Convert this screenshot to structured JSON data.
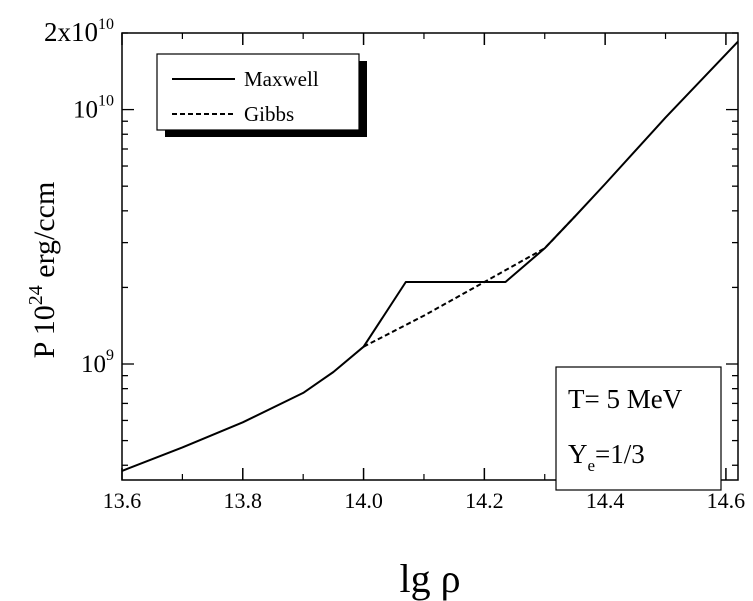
{
  "chart_data": {
    "type": "line",
    "xlabel": "lg ρ",
    "ylabel": {
      "prefix": "P  10",
      "exponent": "24",
      "suffix": " erg/ccm"
    },
    "xlim": [
      13.6,
      14.62
    ],
    "ylim": [
      350000000,
      20000000000
    ],
    "yscale": "log",
    "x_ticks": [
      {
        "value": 13.6,
        "label": "13.6"
      },
      {
        "value": 13.8,
        "label": "13.8"
      },
      {
        "value": 14.0,
        "label": "14.0"
      },
      {
        "value": 14.2,
        "label": "14.2"
      },
      {
        "value": 14.4,
        "label": "14.4"
      },
      {
        "value": 14.6,
        "label": "14.6"
      }
    ],
    "y_tick_labels": [
      {
        "value": 1000000000,
        "base": "10",
        "exp": "9"
      },
      {
        "value": 10000000000,
        "base": "10",
        "exp": "10"
      },
      {
        "value": 20000000000,
        "base": "2x10",
        "exp": "10"
      }
    ],
    "grid": false,
    "legend": {
      "position": "top-left",
      "entries": [
        {
          "label": "Maxwell",
          "style": "solid"
        },
        {
          "label": "Gibbs",
          "style": "dashed"
        }
      ]
    },
    "annotation": {
      "line1": "T= 5 MeV",
      "line2_main": "Y",
      "line2_sub": "e",
      "line2_rest": "=1/3"
    },
    "series": [
      {
        "name": "Maxwell",
        "style": "solid",
        "x": [
          13.6,
          13.7,
          13.8,
          13.9,
          13.95,
          14.0,
          14.07,
          14.235,
          14.3,
          14.35,
          14.4,
          14.5,
          14.62
        ],
        "y": [
          380000000,
          470000000,
          590000000,
          770000000,
          930000000,
          1170000000,
          2100000000,
          2100000000,
          2850000000,
          3800000000,
          5100000000,
          9300000000,
          18500000000
        ]
      },
      {
        "name": "Gibbs",
        "style": "dashed",
        "x": [
          14.0,
          14.1,
          14.2,
          14.3,
          14.35
        ],
        "y": [
          1170000000,
          1550000000,
          2100000000,
          2850000000,
          3800000000
        ]
      }
    ]
  }
}
